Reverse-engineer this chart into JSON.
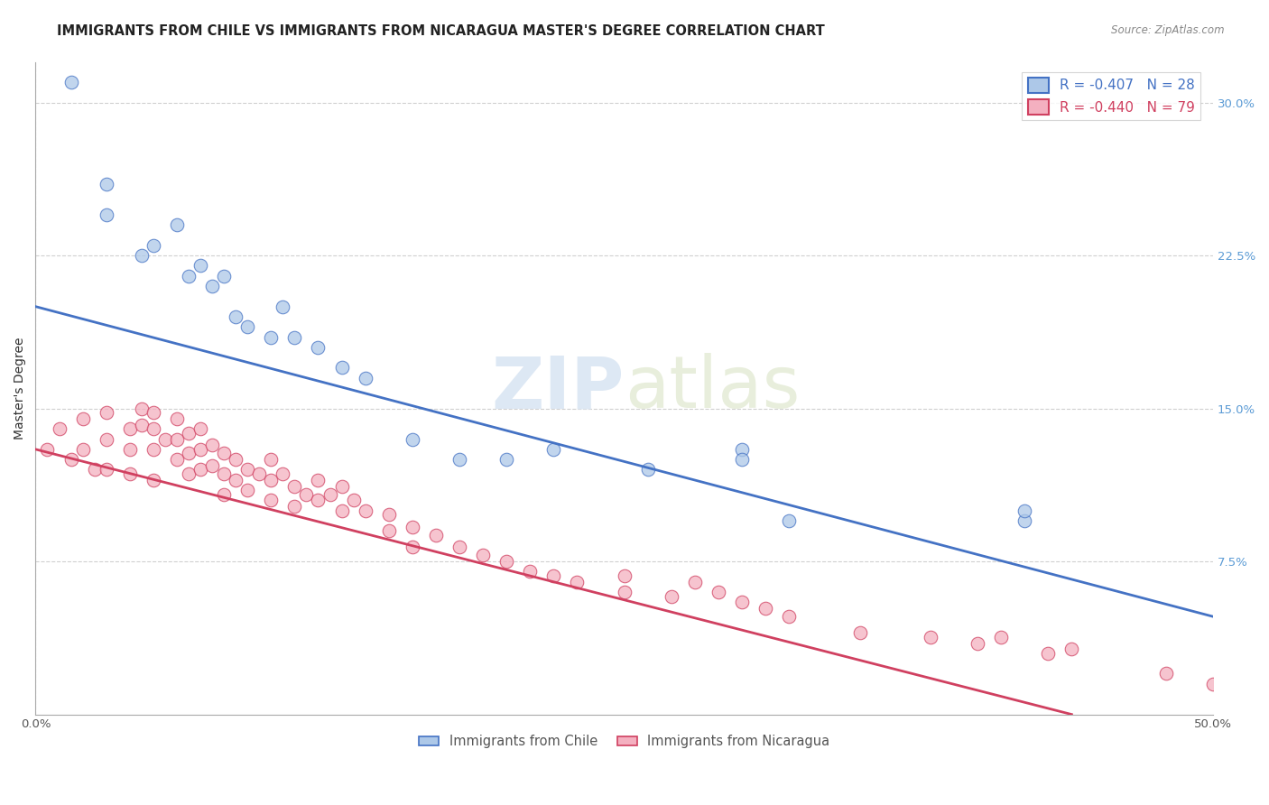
{
  "title": "IMMIGRANTS FROM CHILE VS IMMIGRANTS FROM NICARAGUA MASTER'S DEGREE CORRELATION CHART",
  "source": "Source: ZipAtlas.com",
  "ylabel": "Master's Degree",
  "xlim": [
    0.0,
    0.5
  ],
  "ylim": [
    0.0,
    0.32
  ],
  "y_ticks": [
    0.0,
    0.075,
    0.15,
    0.225,
    0.3
  ],
  "y_tick_labels_right": [
    "",
    "7.5%",
    "15.0%",
    "22.5%",
    "30.0%"
  ],
  "chile_R": -0.407,
  "chile_N": 28,
  "nicaragua_R": -0.44,
  "nicaragua_N": 79,
  "chile_color": "#adc8e8",
  "chile_edge_color": "#4472c4",
  "nicaragua_color": "#f4b0c0",
  "nicaragua_edge_color": "#d04060",
  "chile_line_color": "#4472c4",
  "nicaragua_line_color": "#d04060",
  "watermark_color": "#dde8f4",
  "chile_scatter_x": [
    0.015,
    0.03,
    0.03,
    0.045,
    0.05,
    0.06,
    0.065,
    0.07,
    0.075,
    0.08,
    0.085,
    0.09,
    0.1,
    0.105,
    0.11,
    0.12,
    0.13,
    0.14,
    0.16,
    0.18,
    0.2,
    0.22,
    0.26,
    0.3,
    0.3,
    0.32,
    0.42,
    0.42
  ],
  "chile_scatter_y": [
    0.31,
    0.26,
    0.245,
    0.225,
    0.23,
    0.24,
    0.215,
    0.22,
    0.21,
    0.215,
    0.195,
    0.19,
    0.185,
    0.2,
    0.185,
    0.18,
    0.17,
    0.165,
    0.135,
    0.125,
    0.125,
    0.13,
    0.12,
    0.13,
    0.125,
    0.095,
    0.095,
    0.1
  ],
  "nicaragua_scatter_x": [
    0.005,
    0.01,
    0.015,
    0.02,
    0.02,
    0.025,
    0.03,
    0.03,
    0.03,
    0.04,
    0.04,
    0.04,
    0.045,
    0.045,
    0.05,
    0.05,
    0.05,
    0.05,
    0.055,
    0.06,
    0.06,
    0.06,
    0.065,
    0.065,
    0.065,
    0.07,
    0.07,
    0.07,
    0.075,
    0.075,
    0.08,
    0.08,
    0.08,
    0.085,
    0.085,
    0.09,
    0.09,
    0.095,
    0.1,
    0.1,
    0.1,
    0.105,
    0.11,
    0.11,
    0.115,
    0.12,
    0.12,
    0.125,
    0.13,
    0.13,
    0.135,
    0.14,
    0.15,
    0.15,
    0.16,
    0.16,
    0.17,
    0.18,
    0.19,
    0.2,
    0.21,
    0.22,
    0.23,
    0.25,
    0.25,
    0.27,
    0.28,
    0.29,
    0.3,
    0.31,
    0.32,
    0.35,
    0.38,
    0.4,
    0.41,
    0.43,
    0.44,
    0.48,
    0.5
  ],
  "nicaragua_scatter_y": [
    0.13,
    0.14,
    0.125,
    0.145,
    0.13,
    0.12,
    0.148,
    0.135,
    0.12,
    0.14,
    0.13,
    0.118,
    0.15,
    0.142,
    0.148,
    0.14,
    0.13,
    0.115,
    0.135,
    0.145,
    0.135,
    0.125,
    0.138,
    0.128,
    0.118,
    0.14,
    0.13,
    0.12,
    0.132,
    0.122,
    0.128,
    0.118,
    0.108,
    0.125,
    0.115,
    0.12,
    0.11,
    0.118,
    0.125,
    0.115,
    0.105,
    0.118,
    0.112,
    0.102,
    0.108,
    0.115,
    0.105,
    0.108,
    0.112,
    0.1,
    0.105,
    0.1,
    0.098,
    0.09,
    0.092,
    0.082,
    0.088,
    0.082,
    0.078,
    0.075,
    0.07,
    0.068,
    0.065,
    0.068,
    0.06,
    0.058,
    0.065,
    0.06,
    0.055,
    0.052,
    0.048,
    0.04,
    0.038,
    0.035,
    0.038,
    0.03,
    0.032,
    0.02,
    0.015
  ],
  "chile_line_x": [
    0.0,
    0.5
  ],
  "chile_line_y": [
    0.2,
    0.048
  ],
  "nicaragua_line_x": [
    0.0,
    0.44
  ],
  "nicaragua_line_y": [
    0.13,
    0.0
  ],
  "title_fontsize": 10.5,
  "axis_fontsize": 10,
  "tick_fontsize": 9.5
}
